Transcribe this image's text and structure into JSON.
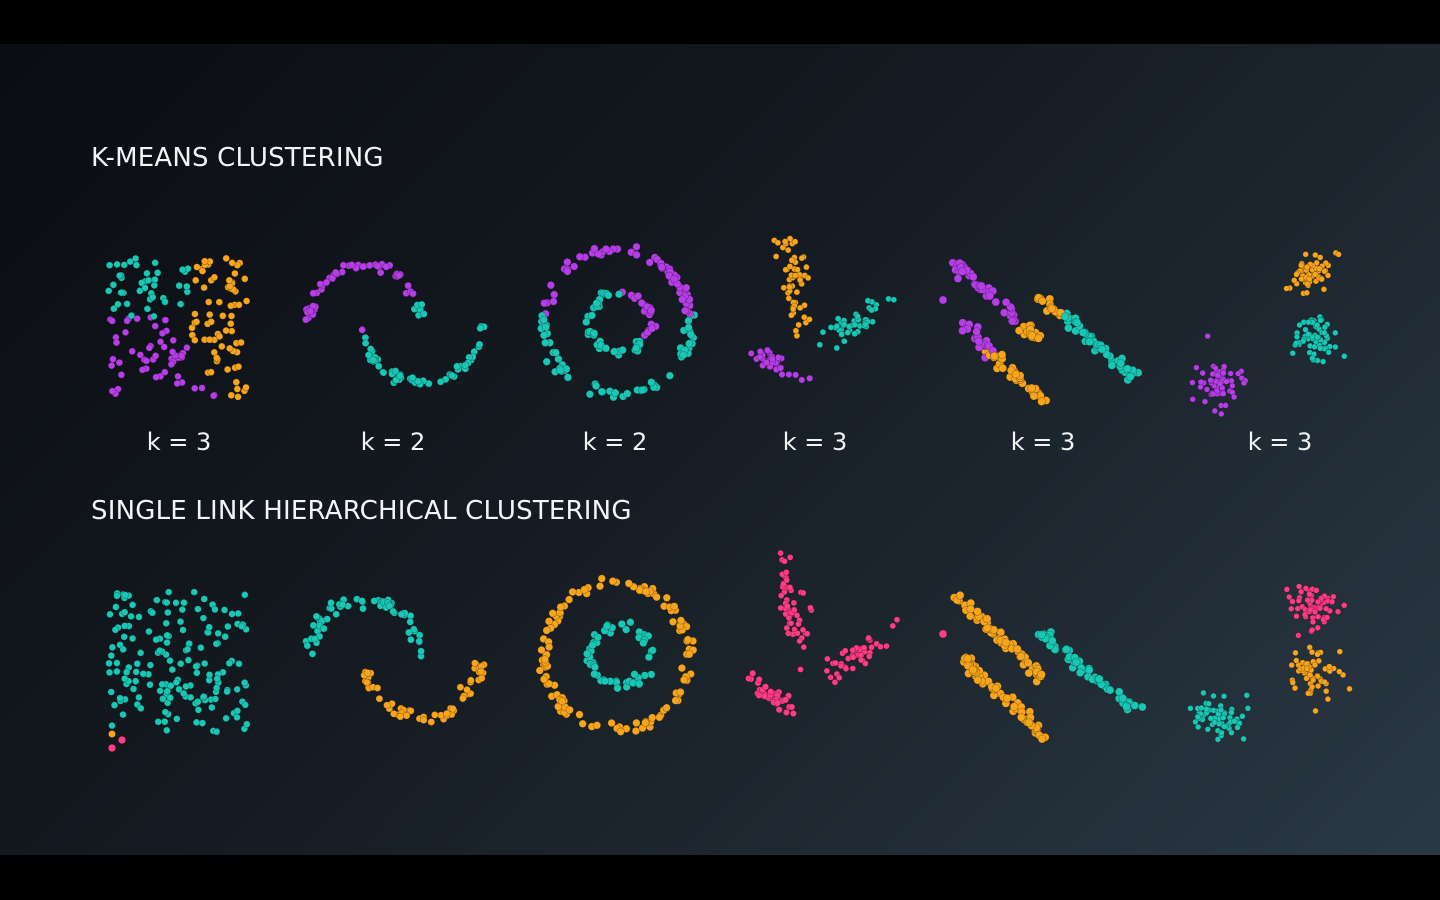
{
  "sections": {
    "kmeans_title": "K-MEANS CLUSTERING",
    "single_link_title": "SINGLE LINK HIERARCHICAL CLUSTERING"
  },
  "k_labels": [
    "k = 3",
    "k = 2",
    "k = 2",
    "k = 3",
    "k = 3",
    "k = 3"
  ],
  "colors": {
    "teal": "#19c7b4",
    "purple": "#b53ee6",
    "orange": "#f7a51c",
    "pink": "#ff3d85"
  },
  "datasets": [
    "uniform-square",
    "two-moons",
    "concentric-circles",
    "anisotropic-blobs",
    "parallel-stripes",
    "three-blobs"
  ]
}
